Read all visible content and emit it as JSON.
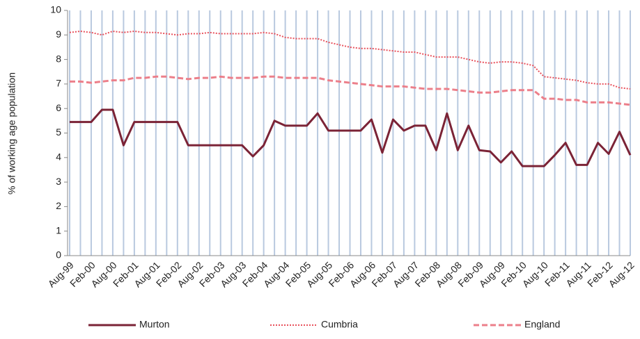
{
  "chart_data": {
    "type": "line",
    "y_label": "% of working age population",
    "categories": [
      "Aug-99",
      null,
      "Feb-00",
      null,
      "Aug-00",
      null,
      "Feb-01",
      null,
      "Aug-01",
      null,
      "Feb-02",
      null,
      "Aug-02",
      null,
      "Feb-03",
      null,
      "Aug-03",
      null,
      "Feb-04",
      null,
      "Aug-04",
      null,
      "Feb-05",
      null,
      "Aug-05",
      null,
      "Feb-06",
      null,
      "Aug-06",
      null,
      "Feb-07",
      null,
      "Aug-07",
      null,
      "Feb-08",
      null,
      "Aug-08",
      null,
      "Feb-09",
      null,
      "Aug-09",
      null,
      "Feb-10",
      null,
      "Aug-10",
      null,
      "Feb-11",
      null,
      "Aug-11",
      null,
      "Feb-12",
      null,
      "Aug-12"
    ],
    "series": [
      {
        "name": "Murton",
        "color": "#7b2336",
        "dash": "solid",
        "values": [
          5.45,
          5.45,
          5.45,
          5.95,
          5.95,
          4.5,
          5.45,
          5.45,
          5.45,
          5.45,
          5.45,
          4.5,
          4.5,
          4.5,
          4.5,
          4.5,
          4.5,
          4.05,
          4.5,
          5.5,
          5.3,
          5.3,
          5.3,
          5.8,
          5.1,
          5.1,
          5.1,
          5.1,
          5.55,
          4.2,
          5.55,
          5.1,
          5.3,
          5.3,
          4.3,
          5.8,
          4.3,
          5.3,
          4.3,
          4.25,
          3.8,
          4.25,
          3.65,
          3.65,
          3.65,
          4.1,
          4.6,
          3.7,
          3.7,
          4.6,
          4.15,
          5.05,
          4.1
        ]
      },
      {
        "name": "Cumbria",
        "color": "#e8505b",
        "dash": "dotted",
        "values": [
          9.1,
          9.15,
          9.1,
          9.0,
          9.15,
          9.1,
          9.15,
          9.1,
          9.1,
          9.05,
          9.0,
          9.05,
          9.05,
          9.1,
          9.05,
          9.05,
          9.05,
          9.05,
          9.1,
          9.05,
          8.9,
          8.85,
          8.85,
          8.85,
          8.7,
          8.6,
          8.5,
          8.45,
          8.45,
          8.4,
          8.35,
          8.3,
          8.3,
          8.2,
          8.1,
          8.1,
          8.1,
          8.0,
          7.9,
          7.85,
          7.9,
          7.9,
          7.85,
          7.75,
          7.3,
          7.25,
          7.2,
          7.15,
          7.05,
          7.0,
          7.0,
          6.85,
          6.8
        ]
      },
      {
        "name": "England",
        "color": "#ec7f8a",
        "dash": "dashed",
        "values": [
          7.1,
          7.1,
          7.05,
          7.1,
          7.15,
          7.15,
          7.25,
          7.25,
          7.3,
          7.3,
          7.25,
          7.2,
          7.25,
          7.25,
          7.3,
          7.25,
          7.25,
          7.25,
          7.3,
          7.3,
          7.25,
          7.25,
          7.25,
          7.25,
          7.15,
          7.1,
          7.05,
          7.0,
          6.95,
          6.9,
          6.9,
          6.9,
          6.85,
          6.8,
          6.8,
          6.8,
          6.75,
          6.7,
          6.65,
          6.65,
          6.7,
          6.75,
          6.75,
          6.75,
          6.4,
          6.4,
          6.35,
          6.35,
          6.25,
          6.25,
          6.25,
          6.2,
          6.15
        ]
      }
    ],
    "ylim": [
      0,
      10
    ],
    "yticks": [
      0,
      1,
      2,
      3,
      4,
      5,
      6,
      7,
      8,
      9,
      10
    ],
    "xgrid": true,
    "grid_color": "#b9c9df",
    "legend": "bottom"
  }
}
